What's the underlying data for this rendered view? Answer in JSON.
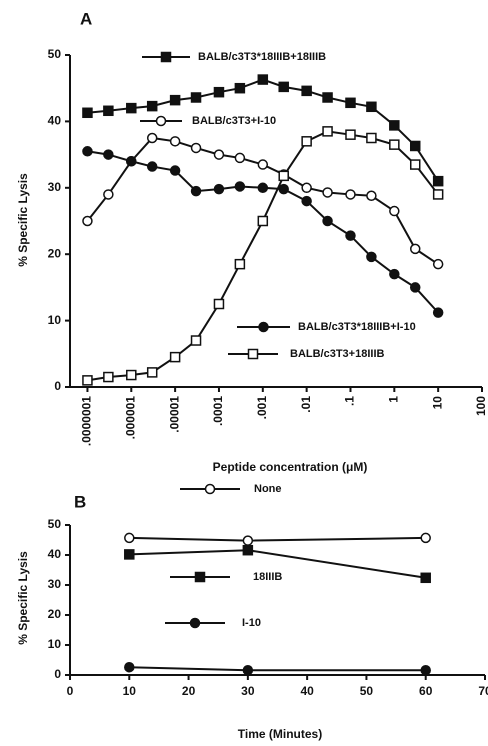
{
  "chart_data": [
    {
      "type": "line",
      "panel": "A",
      "xscale": "log",
      "grid": false,
      "ylabel": "% Specific Lysis",
      "xlabel": "Peptide concentration (μM)",
      "xlim": [
        4e-08,
        100
      ],
      "ylim": [
        0,
        50
      ],
      "xticks": [
        {
          "value": 1e-07,
          "label": ".0000001"
        },
        {
          "value": 1e-06,
          "label": ".000001"
        },
        {
          "value": 1e-05,
          "label": ".00001"
        },
        {
          "value": 0.0001,
          "label": ".0001"
        },
        {
          "value": 0.001,
          "label": ".001"
        },
        {
          "value": 0.01,
          "label": ".01"
        },
        {
          "value": 0.1,
          "label": ".1"
        },
        1,
        10,
        100
      ],
      "yticks": [
        0,
        10,
        20,
        30,
        40,
        50
      ],
      "x": [
        1e-07,
        3e-07,
        1e-06,
        3e-06,
        1e-05,
        3e-05,
        0.0001,
        0.0003,
        0.001,
        0.003,
        0.01,
        0.03,
        0.1,
        0.3,
        1,
        3,
        10
      ],
      "series": [
        {
          "name": "BALB/c3T3*18IIIB+18IIIB",
          "color": "#111",
          "marker": "filled-square",
          "values": [
            41.3,
            41.6,
            42.0,
            42.3,
            43.2,
            43.6,
            44.4,
            45.0,
            46.3,
            45.2,
            44.6,
            43.6,
            42.8,
            42.2,
            39.4,
            36.3,
            31.0
          ]
        },
        {
          "name": "BALB/c3T3+I-10",
          "color": "#111",
          "marker": "open-circle",
          "values": [
            25.0,
            29.0,
            34.0,
            37.5,
            37.0,
            36.0,
            35.0,
            34.5,
            33.5,
            32.0,
            30.0,
            29.3,
            29.0,
            28.8,
            26.5,
            20.8,
            18.5
          ]
        },
        {
          "name": "BALB/c3T3*18IIIB+I-10",
          "color": "#111",
          "marker": "filled-circle",
          "values": [
            35.5,
            35.0,
            34.0,
            33.2,
            32.6,
            29.5,
            29.8,
            30.2,
            30.0,
            29.8,
            28.0,
            25.0,
            22.8,
            19.6,
            17.0,
            15.0,
            11.2
          ]
        },
        {
          "name": "BALB/c3T3+18IIIB",
          "color": "#111",
          "marker": "open-square",
          "values": [
            1.0,
            1.5,
            1.8,
            2.2,
            4.5,
            7.0,
            12.5,
            18.5,
            25.0,
            31.8,
            37.0,
            38.5,
            38.0,
            37.5,
            36.5,
            33.5,
            29.0
          ]
        }
      ]
    },
    {
      "type": "line",
      "panel": "B",
      "xscale": "linear",
      "grid": false,
      "ylabel": "% Specific Lysis",
      "xlabel": "Time (Minutes)",
      "xlim": [
        0,
        70
      ],
      "ylim": [
        0,
        50
      ],
      "xticks": [
        0,
        10,
        20,
        30,
        40,
        50,
        60,
        70
      ],
      "yticks": [
        0,
        10,
        20,
        30,
        40,
        50
      ],
      "x": [
        10,
        30,
        60
      ],
      "series": [
        {
          "name": "None",
          "color": "#111",
          "marker": "open-circle",
          "values": [
            45.7,
            44.8,
            45.7
          ]
        },
        {
          "name": "18IIIB",
          "color": "#111",
          "marker": "filled-square",
          "values": [
            40.2,
            41.6,
            32.4
          ]
        },
        {
          "name": "I-10",
          "color": "#111",
          "marker": "filled-circle",
          "values": [
            2.6,
            1.6,
            1.6
          ]
        }
      ]
    }
  ]
}
